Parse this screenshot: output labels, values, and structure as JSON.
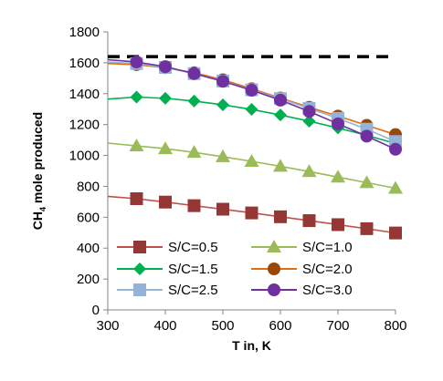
{
  "chart_data": {
    "type": "line",
    "xlabel": "T in, K",
    "ylabel_main": "CH",
    "ylabel_sub": "4",
    "ylabel_rest": " mole produced",
    "xlim": [
      300,
      800
    ],
    "ylim": [
      0,
      1800
    ],
    "x_ticks": [
      300,
      400,
      500,
      600,
      700,
      800
    ],
    "y_ticks": [
      0,
      200,
      400,
      600,
      800,
      1000,
      1200,
      1400,
      1600,
      1800
    ],
    "grid": false,
    "legend_position": "bottom-inside",
    "reference_line": {
      "y": 1640,
      "style": "dashed",
      "color": "#000000"
    },
    "x": [
      350,
      400,
      450,
      500,
      550,
      600,
      650,
      700,
      750,
      800
    ],
    "series": [
      {
        "name": "S/C=0.5",
        "color": "#953735",
        "line_color": "#c0504d",
        "marker": "square",
        "curve_start": {
          "x": 300,
          "y": 735
        },
        "values": [
          720,
          698,
          675,
          652,
          628,
          603,
          578,
          552,
          526,
          498
        ]
      },
      {
        "name": "S/C=1.0",
        "color": "#9bbb59",
        "line_color": "#9bbb59",
        "marker": "triangle",
        "curve_start": {
          "x": 300,
          "y": 1080
        },
        "values": [
          1062,
          1044,
          1020,
          992,
          962,
          930,
          896,
          860,
          824,
          788
        ]
      },
      {
        "name": "S/C=1.5",
        "color": "#00b050",
        "line_color": "#00b050",
        "marker": "diamond",
        "curve_start": {
          "x": 300,
          "y": 1365
        },
        "values": [
          1378,
          1370,
          1352,
          1328,
          1298,
          1262,
          1222,
          1178,
          1130,
          1078
        ]
      },
      {
        "name": "S/C=2.0",
        "color": "#984807",
        "line_color": "#e46c0a",
        "marker": "circle",
        "curve_start": {
          "x": 300,
          "y": 1595
        },
        "values": [
          1588,
          1568,
          1536,
          1490,
          1432,
          1372,
          1312,
          1255,
          1195,
          1135
        ]
      },
      {
        "name": "S/C=2.5",
        "color": "#95b3d7",
        "line_color": "#95b3d7",
        "marker": "square",
        "curve_start": {
          "x": 300,
          "y": 1605
        },
        "values": [
          1595,
          1570,
          1530,
          1482,
          1425,
          1368,
          1305,
          1240,
          1170,
          1090
        ]
      },
      {
        "name": "S/C=3.0",
        "color": "#7030a0",
        "line_color": "#7030a0",
        "marker": "circle",
        "curve_start": {
          "x": 300,
          "y": 1620
        },
        "values": [
          1605,
          1575,
          1530,
          1480,
          1422,
          1358,
          1285,
          1205,
          1125,
          1040
        ]
      }
    ]
  }
}
